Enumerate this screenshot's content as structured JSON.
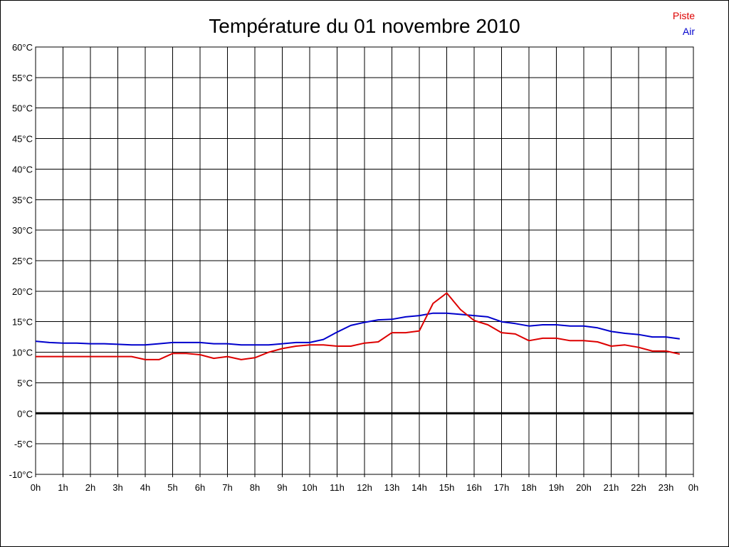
{
  "chart_data": {
    "type": "line",
    "title": "Température du 01 novembre 2010",
    "xlabel": "",
    "ylabel": "",
    "grid": true,
    "legend_position": "top-right",
    "x_tick_labels": [
      "0h",
      "1h",
      "2h",
      "3h",
      "4h",
      "5h",
      "6h",
      "7h",
      "8h",
      "9h",
      "10h",
      "11h",
      "12h",
      "13h",
      "14h",
      "15h",
      "16h",
      "17h",
      "18h",
      "19h",
      "20h",
      "21h",
      "22h",
      "23h",
      "0h"
    ],
    "xlim": [
      0,
      24
    ],
    "y_tick_labels": [
      "60°C",
      "55°C",
      "50°C",
      "45°C",
      "40°C",
      "35°C",
      "30°C",
      "25°C",
      "20°C",
      "15°C",
      "10°C",
      "5°C",
      "0°C",
      "-5°C",
      "-10°C"
    ],
    "ylim": [
      -10,
      60
    ],
    "zero_line": 0,
    "x_hours": [
      0,
      0.5,
      1,
      1.5,
      2,
      2.5,
      3,
      3.5,
      4,
      4.5,
      5,
      5.5,
      6,
      6.5,
      7,
      7.5,
      8,
      8.5,
      9,
      9.5,
      10,
      10.5,
      11,
      11.5,
      12,
      12.5,
      13,
      13.5,
      14,
      14.5,
      15,
      15.5,
      16,
      16.5,
      17,
      17.5,
      18,
      18.5,
      19,
      19.5,
      20,
      20.5,
      21,
      21.5,
      22,
      22.5,
      23,
      23.5
    ],
    "series": [
      {
        "name": "Piste",
        "color": "#dd0000",
        "values": [
          9.3,
          9.3,
          9.3,
          9.3,
          9.3,
          9.3,
          9.3,
          9.3,
          8.8,
          8.8,
          9.8,
          9.8,
          9.6,
          9.0,
          9.3,
          8.8,
          9.1,
          10.0,
          10.6,
          11.0,
          11.2,
          11.2,
          11.0,
          11.0,
          11.5,
          11.7,
          13.2,
          13.2,
          13.5,
          18.0,
          19.7,
          17.0,
          15.2,
          14.5,
          13.2,
          13.0,
          11.9,
          12.3,
          12.3,
          11.9,
          11.9,
          11.7,
          11.0,
          11.2,
          10.8,
          10.2,
          10.2,
          9.7
        ]
      },
      {
        "name": "Air",
        "color": "#0000cc",
        "values": [
          11.8,
          11.6,
          11.5,
          11.5,
          11.4,
          11.4,
          11.3,
          11.2,
          11.2,
          11.4,
          11.6,
          11.6,
          11.6,
          11.4,
          11.4,
          11.2,
          11.2,
          11.2,
          11.4,
          11.6,
          11.6,
          12.1,
          13.3,
          14.4,
          14.9,
          15.3,
          15.4,
          15.8,
          16.0,
          16.4,
          16.4,
          16.2,
          16.0,
          15.8,
          15.0,
          14.7,
          14.3,
          14.5,
          14.5,
          14.3,
          14.3,
          14.0,
          13.4,
          13.1,
          12.9,
          12.5,
          12.5,
          12.2
        ]
      }
    ]
  }
}
